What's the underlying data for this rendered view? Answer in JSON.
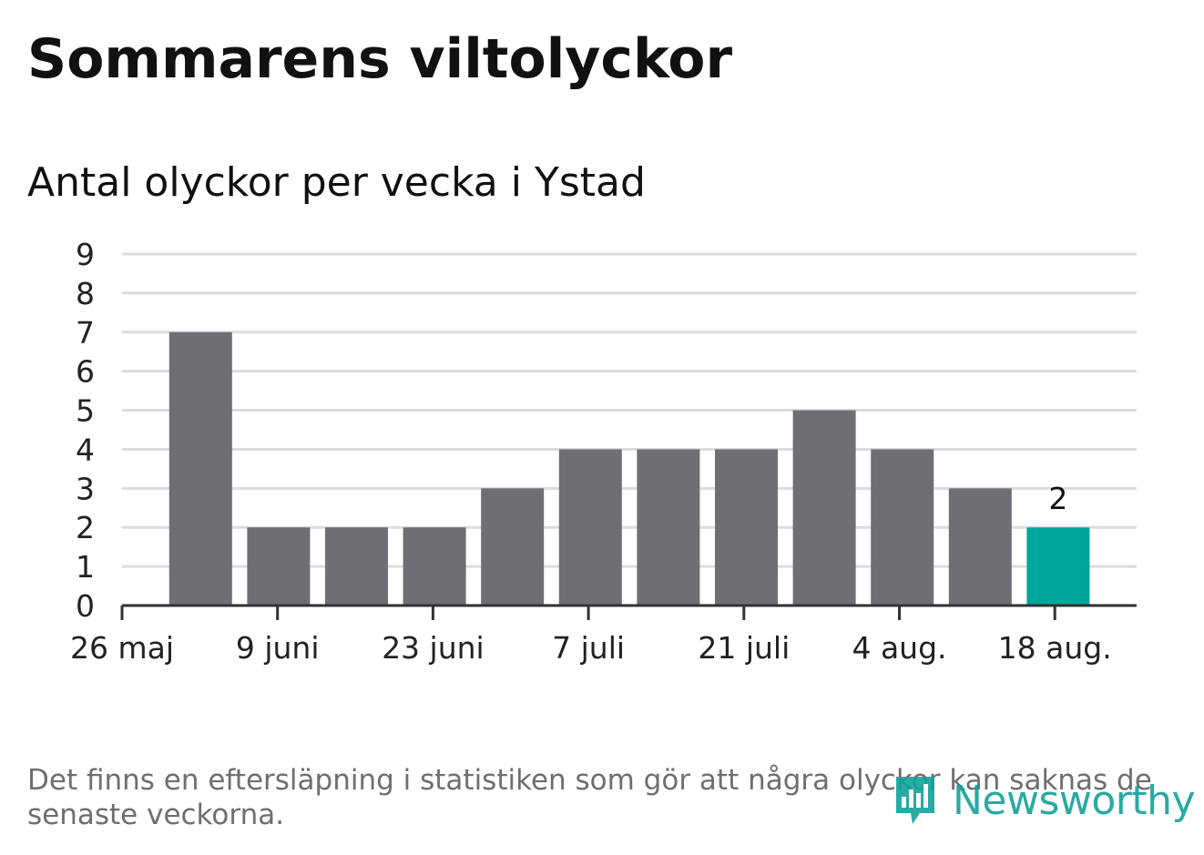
{
  "header": {
    "title": "Sommarens viltolyckor",
    "subtitle": "Antal olyckor per vecka i Ystad"
  },
  "footer": {
    "note": "Det finns en eftersläpning i statistiken som gör att några olyckor kan saknas de senaste veckorna.",
    "brand": "Newsworthy",
    "brand_icon": "bar-chart-speech-bubble-icon"
  },
  "colors": {
    "bar": "#6f6e74",
    "highlight": "#00a59b",
    "grid": "#dcdcdc",
    "axis": "#333333",
    "brand": "#12a19a"
  },
  "chart_data": {
    "type": "bar",
    "title": "Sommarens viltolyckor",
    "subtitle": "Antal olyckor per vecka i Ystad",
    "x_tick_labels": [
      "26 maj",
      "9 juni",
      "23 juni",
      "7 juli",
      "21 juli",
      "4 aug.",
      "18 aug."
    ],
    "values": [
      7,
      2,
      2,
      2,
      3,
      4,
      4,
      4,
      5,
      4,
      3,
      2
    ],
    "highlight_index": 11,
    "data_labels": [
      {
        "index": 11,
        "text": "2"
      }
    ],
    "y_ticks": [
      0,
      1,
      2,
      3,
      4,
      5,
      6,
      7,
      8,
      9
    ],
    "ylim": [
      0,
      9
    ],
    "grid": true,
    "legend": "none"
  }
}
